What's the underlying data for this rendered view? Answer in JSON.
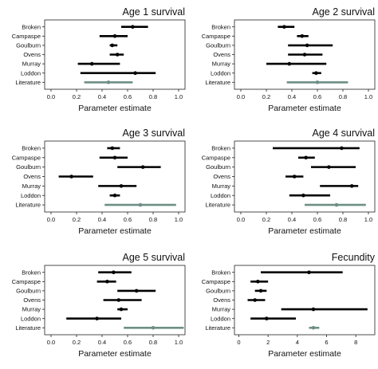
{
  "chart_data": [
    {
      "type": "forest",
      "title": "Age 1 survival",
      "xlabel": "Parameter estimate",
      "xlim": [
        -0.05,
        1.05
      ],
      "xticks": [
        "0.0",
        "0.2",
        "0.4",
        "0.6",
        "0.8",
        "1.0"
      ],
      "categories": [
        "Broken",
        "Campaspe",
        "Goulburn",
        "Ovens",
        "Murray",
        "Loddon",
        "Literature"
      ],
      "estimates": [
        0.64,
        0.5,
        0.48,
        0.52,
        0.32,
        0.66,
        0.45
      ],
      "lower": [
        0.55,
        0.38,
        0.46,
        0.46,
        0.21,
        0.23,
        0.26
      ],
      "upper": [
        0.76,
        0.6,
        0.52,
        0.57,
        0.54,
        0.82,
        0.64
      ]
    },
    {
      "type": "forest",
      "title": "Age 2 survival",
      "xlabel": "Parameter estimate",
      "xlim": [
        -0.05,
        1.05
      ],
      "xticks": [
        "0.0",
        "0.2",
        "0.4",
        "0.6",
        "0.8",
        "1.0"
      ],
      "categories": [
        "Broken",
        "Campaspe",
        "Goulburn",
        "Ovens",
        "Murray",
        "Loddon",
        "Literature"
      ],
      "estimates": [
        0.34,
        0.48,
        0.52,
        0.5,
        0.38,
        0.59,
        0.6
      ],
      "lower": [
        0.29,
        0.44,
        0.37,
        0.37,
        0.2,
        0.56,
        0.36
      ],
      "upper": [
        0.42,
        0.53,
        0.72,
        0.64,
        0.67,
        0.63,
        0.84
      ]
    },
    {
      "type": "forest",
      "title": "Age 3 survival",
      "xlabel": "Parameter estimate",
      "xlim": [
        -0.05,
        1.05
      ],
      "xticks": [
        "0.0",
        "0.2",
        "0.4",
        "0.6",
        "0.8",
        "1.0"
      ],
      "categories": [
        "Broken",
        "Campaspe",
        "Goulburn",
        "Ovens",
        "Murray",
        "Loddon",
        "Literature"
      ],
      "estimates": [
        0.48,
        0.5,
        0.72,
        0.16,
        0.55,
        0.5,
        0.7
      ],
      "lower": [
        0.44,
        0.38,
        0.52,
        0.06,
        0.37,
        0.46,
        0.42
      ],
      "upper": [
        0.54,
        0.6,
        0.86,
        0.33,
        0.67,
        0.54,
        0.98
      ]
    },
    {
      "type": "forest",
      "title": "Age 4 survival",
      "xlabel": "Parameter estimate",
      "xlim": [
        -0.05,
        1.05
      ],
      "xticks": [
        "0.0",
        "0.2",
        "0.4",
        "0.6",
        "0.8",
        "1.0"
      ],
      "categories": [
        "Broken",
        "Campaspe",
        "Goulburn",
        "Ovens",
        "Murray",
        "Loddon",
        "Literature"
      ],
      "estimates": [
        0.79,
        0.51,
        0.69,
        0.42,
        0.87,
        0.49,
        0.75
      ],
      "lower": [
        0.25,
        0.45,
        0.55,
        0.35,
        0.62,
        0.38,
        0.5
      ],
      "upper": [
        0.93,
        0.58,
        0.9,
        0.49,
        0.92,
        0.7,
        0.98
      ]
    },
    {
      "type": "forest",
      "title": "Age 5 survival",
      "xlabel": "Parameter estimate",
      "xlim": [
        -0.05,
        1.05
      ],
      "xticks": [
        "0.0",
        "0.2",
        "0.4",
        "0.6",
        "0.8",
        "1.0"
      ],
      "categories": [
        "Broken",
        "Campaspe",
        "Goulburn",
        "Ovens",
        "Murray",
        "Loddon",
        "Literature"
      ],
      "estimates": [
        0.49,
        0.44,
        0.67,
        0.53,
        0.55,
        0.36,
        0.8
      ],
      "lower": [
        0.37,
        0.36,
        0.52,
        0.41,
        0.52,
        0.12,
        0.57
      ],
      "upper": [
        0.63,
        0.51,
        0.82,
        0.71,
        0.6,
        0.55,
        1.04
      ]
    },
    {
      "type": "forest",
      "title": "Fecundity",
      "xlabel": "Parameter estimate",
      "xlim": [
        -0.3,
        9.3
      ],
      "xticks": [
        "0",
        "2",
        "4",
        "6",
        "8"
      ],
      "categories": [
        "Broken",
        "Campaspe",
        "Goulburn",
        "Ovens",
        "Murray",
        "Loddon",
        "Literature"
      ],
      "estimates": [
        4.8,
        1.3,
        1.5,
        1.1,
        5.1,
        1.9,
        5.1
      ],
      "lower": [
        1.5,
        0.8,
        1.1,
        0.6,
        2.9,
        0.8,
        4.8
      ],
      "upper": [
        7.1,
        2.0,
        1.9,
        1.8,
        8.8,
        3.9,
        5.5
      ]
    }
  ],
  "colors": {
    "estimate": "#000000",
    "literature": "#6e8f86",
    "axis": "#222222"
  }
}
